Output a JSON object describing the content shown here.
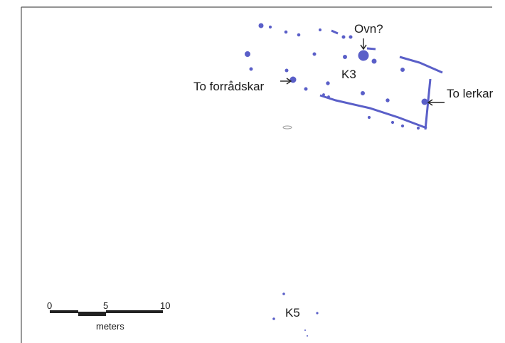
{
  "labels": {
    "oven": "Ovn?",
    "house_k3": "K3",
    "storage_jars": "To forrådskar",
    "clay_jars": "To lerkar",
    "house_k5": "K5"
  },
  "scale_bar": {
    "tick_0": "0",
    "tick_5": "5",
    "tick_10": "10",
    "unit": "meters"
  },
  "colors": {
    "features": "#5a5fc8",
    "border": "#444444",
    "text": "#1a1a1a"
  }
}
